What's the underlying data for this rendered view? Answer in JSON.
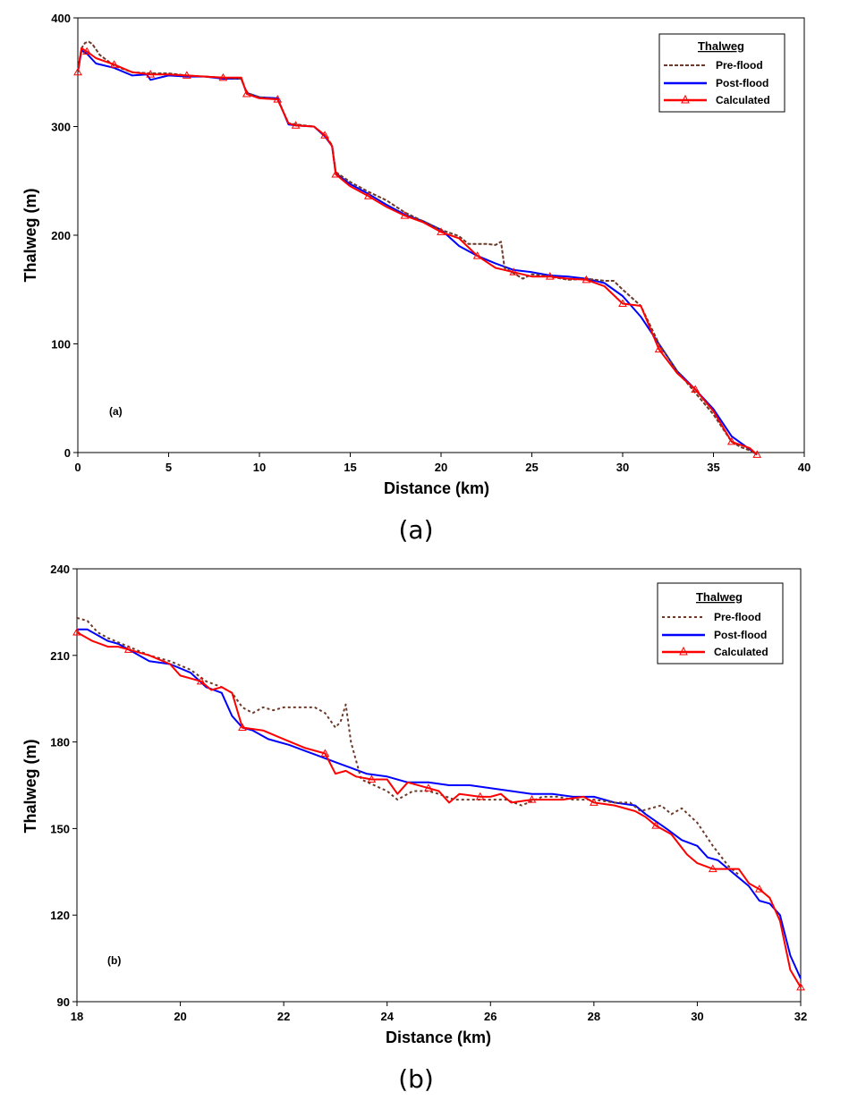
{
  "figure": {
    "captions": [
      "(a)",
      "(b)"
    ]
  },
  "colors": {
    "pre_flood": "#6b3a2a",
    "post_flood": "#0000ff",
    "calculated": "#ff0000"
  },
  "chart_data": [
    {
      "type": "line",
      "panel_label": "(a)",
      "caption": "(a)",
      "xlabel": "Distance (km)",
      "ylabel": "Thalweg (m)",
      "xlim": [
        0,
        40
      ],
      "ylim": [
        0,
        400
      ],
      "xticks": [
        0,
        5,
        10,
        15,
        20,
        25,
        30,
        35,
        40
      ],
      "yticks": [
        0,
        100,
        200,
        300,
        400
      ],
      "legend": {
        "title": "Thalweg",
        "position": "top-right"
      },
      "series": [
        {
          "name": "Pre-flood",
          "style": "dashed",
          "color": "#6b3a2a",
          "x": [
            0,
            0.2,
            0.4,
            0.6,
            0.8,
            1.2,
            2,
            3,
            4,
            5,
            6,
            7,
            8,
            9,
            9.3,
            10,
            11,
            11.6,
            12,
            13,
            13.6,
            14,
            14.2,
            15,
            16,
            17,
            18,
            19,
            20,
            21,
            21.5,
            22,
            22.5,
            23,
            23.3,
            23.5,
            24,
            24.5,
            25,
            26,
            27,
            28,
            29,
            29.5,
            30,
            31,
            32,
            33,
            34,
            35,
            36,
            36.5,
            37,
            37.4
          ],
          "y": [
            352,
            372,
            377,
            378,
            376,
            366,
            356,
            350,
            349,
            349,
            347,
            346,
            345,
            344,
            331,
            327,
            325,
            303,
            302,
            300,
            292,
            283,
            258,
            249,
            240,
            232,
            221,
            213,
            205,
            199,
            192,
            192,
            192,
            191,
            194,
            170,
            165,
            160,
            164,
            162,
            159,
            160,
            158,
            158,
            150,
            135,
            100,
            75,
            55,
            35,
            10,
            5,
            2,
            -2
          ]
        },
        {
          "name": "Post-flood",
          "style": "solid",
          "color": "#0000ff",
          "x": [
            0,
            0.2,
            0.5,
            1,
            2,
            3,
            3.8,
            4,
            5,
            6,
            7,
            8,
            9,
            9.3,
            10,
            11,
            11.6,
            12,
            13,
            13.6,
            14,
            14.2,
            15,
            16,
            17,
            18,
            19,
            20,
            21,
            22,
            23,
            24,
            25,
            26,
            27,
            28,
            29,
            30,
            31,
            32,
            33,
            34,
            35,
            36,
            37,
            37.4
          ],
          "y": [
            350,
            370,
            367,
            358,
            354,
            347,
            348,
            343,
            347,
            346,
            346,
            344,
            344,
            331,
            327,
            326,
            302,
            301,
            300,
            291,
            282,
            257,
            247,
            238,
            228,
            219,
            213,
            205,
            190,
            181,
            174,
            168,
            166,
            163,
            162,
            160,
            156,
            144,
            125,
            100,
            75,
            58,
            40,
            15,
            3,
            -2
          ]
        },
        {
          "name": "Calculated",
          "style": "solid-triangle",
          "color": "#ff0000",
          "x": [
            0,
            0.2,
            0.5,
            1,
            2,
            3,
            4,
            5,
            6,
            7,
            8,
            9,
            9.3,
            10,
            11,
            11.6,
            12,
            13,
            13.6,
            14,
            14.2,
            15,
            16,
            17,
            18,
            19,
            20,
            21,
            22,
            23,
            24,
            25,
            26,
            27,
            28,
            29,
            30,
            31,
            32,
            33,
            34,
            35,
            36,
            37,
            37.4
          ],
          "y": [
            350,
            372,
            369,
            363,
            357,
            350,
            348,
            348,
            347,
            346,
            345,
            345,
            330,
            326,
            325,
            303,
            301,
            300,
            292,
            282,
            256,
            245,
            236,
            226,
            218,
            212,
            203,
            197,
            181,
            170,
            166,
            162,
            162,
            160,
            159,
            153,
            137,
            135,
            95,
            73,
            58,
            38,
            10,
            4,
            -2
          ]
        }
      ]
    },
    {
      "type": "line",
      "panel_label": "(b)",
      "caption": "(b)",
      "xlabel": "Distance (km)",
      "ylabel": "Thalweg (m)",
      "xlim": [
        18,
        32
      ],
      "ylim": [
        90,
        240
      ],
      "xticks": [
        18,
        20,
        22,
        24,
        26,
        28,
        30,
        32
      ],
      "yticks": [
        90,
        120,
        150,
        180,
        210,
        240
      ],
      "legend": {
        "title": "Thalweg",
        "position": "top-right"
      },
      "series": [
        {
          "name": "Pre-flood",
          "style": "dashed",
          "color": "#6b3a2a",
          "x": [
            18,
            18.2,
            18.4,
            18.6,
            19,
            19.4,
            19.8,
            20.2,
            20.5,
            20.8,
            21.0,
            21.2,
            21.4,
            21.6,
            21.8,
            22.0,
            22.2,
            22.4,
            22.6,
            22.8,
            23.0,
            23.1,
            23.2,
            23.3,
            23.5,
            24.0,
            24.2,
            24.5,
            24.8,
            25.0,
            25.3,
            25.6,
            26.0,
            26.3,
            26.6,
            27.0,
            27.3,
            27.6,
            28.0,
            28.4,
            28.7,
            28.9,
            29.1,
            29.3,
            29.5,
            29.7,
            30.0,
            30.3,
            30.6,
            30.8
          ],
          "y": [
            223,
            222,
            218,
            216,
            213,
            210,
            208,
            205,
            201,
            199,
            197,
            192,
            190,
            192,
            191,
            192,
            192,
            192,
            192,
            190,
            185,
            187,
            193,
            180,
            167,
            163,
            160,
            163,
            163,
            162,
            160,
            160,
            160,
            160,
            158,
            161,
            161,
            160,
            160,
            159,
            159,
            156,
            157,
            158,
            155,
            157,
            152,
            144,
            137,
            134
          ]
        },
        {
          "name": "Post-flood",
          "style": "solid",
          "color": "#0000ff",
          "x": [
            18,
            18.2,
            18.4,
            18.6,
            18.8,
            19,
            19.4,
            19.8,
            20.2,
            20.5,
            20.8,
            21.0,
            21.2,
            21.4,
            21.7,
            21.9,
            22.1,
            22.4,
            22.7,
            23.0,
            23.3,
            23.6,
            24.0,
            24.4,
            24.8,
            25.2,
            25.6,
            26.0,
            26.4,
            26.8,
            27.2,
            27.6,
            28.0,
            28.4,
            28.8,
            29.0,
            29.4,
            29.7,
            30.0,
            30.2,
            30.4,
            30.6,
            30.8,
            31.0,
            31.2,
            31.4,
            31.6,
            31.8,
            32.0
          ],
          "y": [
            219,
            219,
            217,
            215,
            214,
            212,
            208,
            207,
            204,
            199,
            197,
            189,
            185,
            184,
            181,
            180,
            179,
            177,
            175,
            173,
            171,
            169,
            168,
            166,
            166,
            165,
            165,
            164,
            163,
            162,
            162,
            161,
            161,
            159,
            158,
            155,
            150,
            146,
            144,
            140,
            139,
            136,
            133,
            130,
            125,
            124,
            120,
            106,
            98
          ]
        },
        {
          "name": "Calculated",
          "style": "solid-triangle",
          "color": "#ff0000",
          "x": [
            18,
            18.3,
            18.6,
            18.8,
            19.0,
            19.4,
            19.8,
            20.0,
            20.4,
            20.6,
            20.8,
            21.0,
            21.2,
            21.6,
            22.0,
            22.4,
            22.8,
            23.0,
            23.2,
            23.4,
            23.7,
            24.0,
            24.2,
            24.4,
            24.8,
            25.0,
            25.2,
            25.4,
            25.8,
            26.0,
            26.2,
            26.4,
            26.8,
            27.0,
            27.4,
            27.8,
            28.0,
            28.4,
            28.8,
            29.0,
            29.2,
            29.5,
            29.8,
            30.0,
            30.3,
            30.6,
            30.8,
            31.0,
            31.2,
            31.4,
            31.6,
            31.8,
            32.0
          ],
          "y": [
            218,
            215,
            213,
            213,
            212,
            210,
            207,
            203,
            201,
            198,
            199,
            197,
            185,
            184,
            181,
            178,
            176,
            169,
            170,
            168,
            167,
            167,
            162,
            166,
            164,
            163,
            159,
            162,
            161,
            161,
            162,
            159,
            160,
            160,
            160,
            161,
            159,
            158,
            156,
            154,
            151,
            148,
            141,
            138,
            136,
            136,
            136,
            131,
            129,
            126,
            118,
            101,
            95
          ]
        }
      ]
    }
  ]
}
